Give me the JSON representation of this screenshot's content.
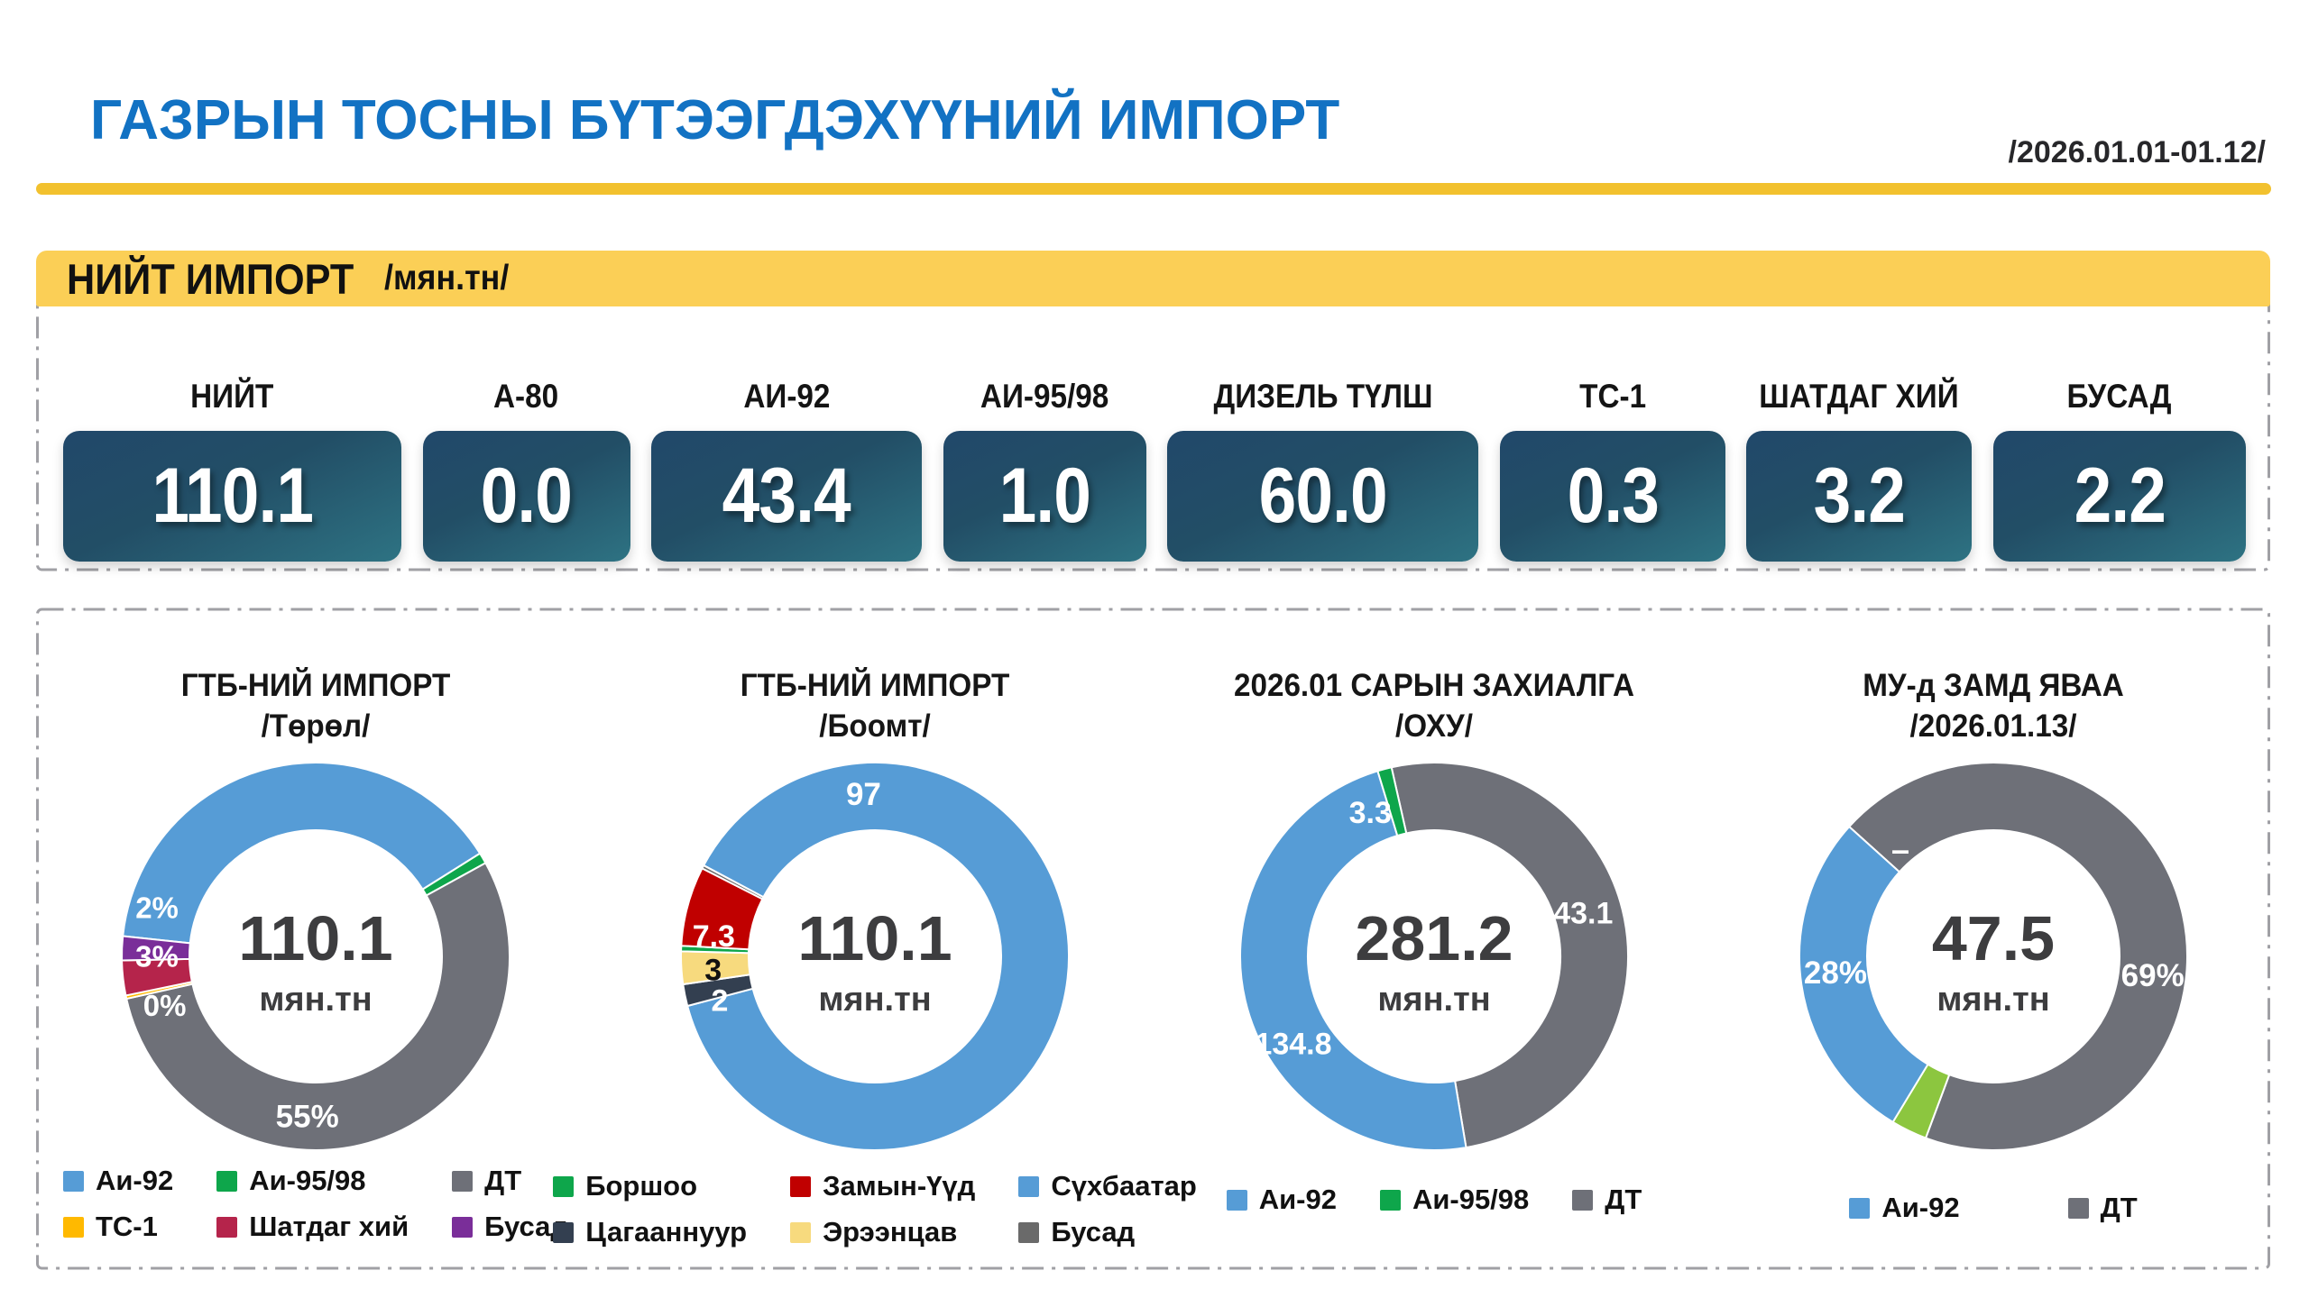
{
  "header": {
    "title": "ГАЗРЫН ТОСНЫ БҮТЭЭГДЭХҮҮНИЙ ИМПОРТ",
    "date_range": "/2026.01.01-01.12/"
  },
  "total_section": {
    "label": "НИЙТ ИМПОРТ",
    "unit": "/мян.тн/"
  },
  "stats": [
    {
      "label": "НИЙТ",
      "value": "110.1"
    },
    {
      "label": "А-80",
      "value": "0.0"
    },
    {
      "label": "АИ-92",
      "value": "43.4"
    },
    {
      "label": "АИ-95/98",
      "value": "1.0"
    },
    {
      "label": "ДИЗЕЛЬ ТҮЛШ",
      "value": "60.0"
    },
    {
      "label": "ТС-1",
      "value": "0.3"
    },
    {
      "label": "ШАТДАГ ХИЙ",
      "value": "3.2"
    },
    {
      "label": "БУСАД",
      "value": "2.2"
    }
  ],
  "colors": {
    "accent_blue": "#1272C3",
    "accent_yellow": "#FBCF56",
    "rule_yellow": "#F2C12E",
    "card_gradient_start": "#21486A",
    "card_gradient_end": "#2E7383",
    "series_blue": "#569CD6",
    "series_green": "#0EA64B",
    "series_gray": "#6E7078",
    "series_gold": "#FFB900",
    "series_crimson": "#B5244B",
    "series_purple": "#7A2E99",
    "series_red": "#C00000",
    "series_navy": "#333F50",
    "series_pale_yellow": "#F7DA7E",
    "series_light_green": "#8CC63F",
    "series_dark_gray": "#6A6A6A"
  },
  "chart_data": [
    {
      "type": "donut",
      "title": "ГТБ-НИЙ ИМПОРТ",
      "subtitle": "/Төрөл/",
      "center_value": "110.1",
      "center_unit": "мян.тн",
      "total": 110.1,
      "start_angle": 276,
      "slices": [
        {
          "name": "Аи-92",
          "value": 43.4,
          "color": "#569CD6",
          "labels": []
        },
        {
          "name": "Аи-95/98",
          "value": 1.0,
          "color": "#0EA64B",
          "labels": []
        },
        {
          "name": "ДТ",
          "value": 60.0,
          "color": "#6E7078",
          "labels": [
            {
              "text": "55%",
              "angle": 183,
              "r": 178,
              "color": "#fff",
              "size": 35
            }
          ]
        },
        {
          "name": "ТС-1",
          "value": 0.3,
          "color": "#FFB900",
          "labels": [
            {
              "text": "0%",
              "angle": 252,
              "r": 176,
              "color": "#fff",
              "size": 33
            }
          ]
        },
        {
          "name": "Шатдаг хий",
          "value": 3.2,
          "color": "#B5244B",
          "labels": [
            {
              "text": "3%",
              "angle": 270,
              "r": 176,
              "color": "#fff",
              "size": 33
            }
          ]
        },
        {
          "name": "Бусад",
          "value": 2.2,
          "color": "#7A2E99",
          "labels": [
            {
              "text": "2%",
              "angle": 287,
              "r": 184,
              "color": "#fff",
              "size": 33
            }
          ]
        }
      ],
      "legend": {
        "columns": 3,
        "items": [
          {
            "label": "Аи-92",
            "color": "#569CD6"
          },
          {
            "label": "Аи-95/98",
            "color": "#0EA64B"
          },
          {
            "label": "ДТ",
            "color": "#6E7078"
          },
          {
            "label": "ТС-1",
            "color": "#FFB900"
          },
          {
            "label": "Шатдаг хий",
            "color": "#B5244B"
          },
          {
            "label": "Бусад",
            "color": "#7A2E99"
          }
        ]
      }
    },
    {
      "type": "donut",
      "title": "ГТБ-НИЙ ИМПОРТ",
      "subtitle": "/Боомт/",
      "center_value": "110.1",
      "center_unit": "мян.тн",
      "total": 110.1,
      "start_angle": 298,
      "slices": [
        {
          "name": "Сүхбаатар",
          "value": 97.0,
          "color": "#569CD6",
          "labels": [
            {
              "text": "97",
              "angle": 356,
              "r": 180,
              "color": "#fff",
              "size": 35
            }
          ]
        },
        {
          "name": "Цагааннуур",
          "value": 2.0,
          "color": "#333F50",
          "labels": [
            {
              "text": "2",
              "angle": 254,
              "r": 179,
              "color": "#fff",
              "size": 34
            }
          ]
        },
        {
          "name": "Эрээнцав",
          "value": 3.0,
          "color": "#F7DA7E",
          "labels": [
            {
              "text": "3",
              "angle": 265,
              "r": 180,
              "color": "#111",
              "size": 34
            }
          ]
        },
        {
          "name": "Боршоо",
          "value": 0.5,
          "color": "#0EA64B",
          "labels": []
        },
        {
          "name": "Замын-Үүд",
          "value": 7.3,
          "color": "#C00000",
          "labels": [
            {
              "text": "7.3",
              "angle": 277,
              "r": 180,
              "color": "#fff",
              "size": 34
            }
          ]
        },
        {
          "name": "Бусад",
          "value": 0.3,
          "color": "#6A6A6A",
          "labels": []
        }
      ],
      "legend": {
        "columns": 3,
        "items": [
          {
            "label": "Боршоо",
            "color": "#0EA64B"
          },
          {
            "label": "Замын-Үүд",
            "color": "#C00000"
          },
          {
            "label": "Сүхбаатар",
            "color": "#569CD6"
          },
          {
            "label": "Цагааннуур",
            "color": "#333F50"
          },
          {
            "label": "Эрээнцав",
            "color": "#F7DA7E"
          },
          {
            "label": "Бусад",
            "color": "#6A6A6A"
          }
        ]
      }
    },
    {
      "type": "donut",
      "title": "2026.01 САРЫН ЗАХИАЛГА",
      "subtitle": "/ОХУ/",
      "center_value": "281.2",
      "center_unit": "мян.тн",
      "total": 281.2,
      "start_angle": 347.3,
      "slices": [
        {
          "name": "ДТ",
          "value": 143.1,
          "color": "#6E7078",
          "labels": [
            {
              "text": "143.1",
              "angle": 73,
              "r": 163,
              "color": "#fff",
              "size": 34
            }
          ]
        },
        {
          "name": "Аи-92",
          "value": 134.8,
          "color": "#569CD6",
          "labels": [
            {
              "text": "134.8",
              "angle": 238,
              "r": 184,
              "color": "#fff",
              "size": 34
            }
          ]
        },
        {
          "name": "Аи-95/98",
          "value": 3.3,
          "color": "#0EA64B",
          "labels": [
            {
              "text": "3.3",
              "angle": 336,
              "r": 174,
              "color": "#fff",
              "size": 34
            }
          ]
        }
      ],
      "legend": {
        "columns": 3,
        "items": [
          {
            "label": "Аи-92",
            "color": "#569CD6"
          },
          {
            "label": "Аи-95/98",
            "color": "#0EA64B"
          },
          {
            "label": "ДТ",
            "color": "#6E7078"
          }
        ]
      }
    },
    {
      "type": "donut",
      "title": "МУ-д ЗАМД ЯВАА",
      "subtitle": "/2026.01.13/",
      "center_value": "47.5",
      "center_unit": "мян.тн",
      "total": 100,
      "start_angle": 312,
      "slices": [
        {
          "name": "ДТ",
          "value": 69,
          "color": "#6E7078",
          "labels": [
            {
              "text": "69%",
              "angle": 97,
              "r": 178,
              "color": "#fff",
              "size": 35
            },
            {
              "text": "–",
              "angle": 319,
              "r": 157,
              "color": "#fff",
              "size": 36
            }
          ]
        },
        {
          "name": "Аи-95/98",
          "value": 3,
          "color": "#8CC63F",
          "labels": []
        },
        {
          "name": "Аи-92",
          "value": 28,
          "color": "#569CD6",
          "labels": [
            {
              "text": "28%",
              "angle": 264,
              "r": 176,
              "color": "#fff",
              "size": 35
            }
          ]
        }
      ],
      "legend": {
        "columns": 2,
        "items": [
          {
            "label": "Аи-92",
            "color": "#569CD6"
          },
          {
            "label": "ДТ",
            "color": "#6E7078"
          }
        ]
      }
    }
  ]
}
